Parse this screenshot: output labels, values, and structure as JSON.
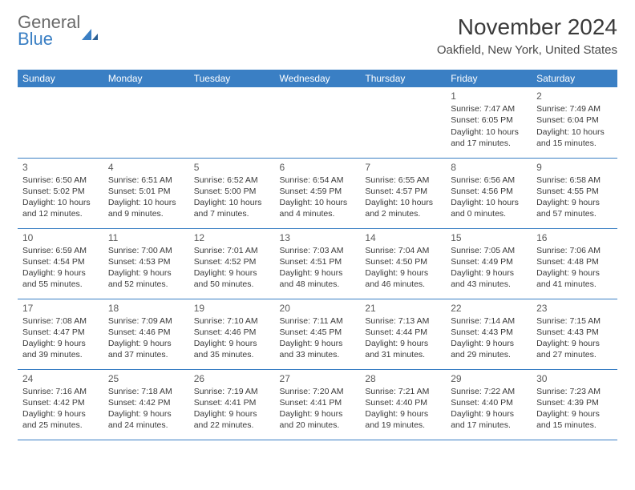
{
  "logo": {
    "line1": "General",
    "line2": "Blue"
  },
  "title": "November 2024",
  "location": "Oakfield, New York, United States",
  "colors": {
    "header_bg": "#3a7fc4",
    "header_text": "#ffffff",
    "accent": "#3a7fc4",
    "body_text": "#3a3a3a",
    "logo_gray": "#6a6a6a"
  },
  "dayHeaders": [
    "Sunday",
    "Monday",
    "Tuesday",
    "Wednesday",
    "Thursday",
    "Friday",
    "Saturday"
  ],
  "weeks": [
    [
      {
        "empty": true
      },
      {
        "empty": true
      },
      {
        "empty": true
      },
      {
        "empty": true
      },
      {
        "empty": true
      },
      {
        "n": "1",
        "sunrise": "Sunrise: 7:47 AM",
        "sunset": "Sunset: 6:05 PM",
        "d1": "Daylight: 10 hours",
        "d2": "and 17 minutes."
      },
      {
        "n": "2",
        "sunrise": "Sunrise: 7:49 AM",
        "sunset": "Sunset: 6:04 PM",
        "d1": "Daylight: 10 hours",
        "d2": "and 15 minutes."
      }
    ],
    [
      {
        "n": "3",
        "sunrise": "Sunrise: 6:50 AM",
        "sunset": "Sunset: 5:02 PM",
        "d1": "Daylight: 10 hours",
        "d2": "and 12 minutes."
      },
      {
        "n": "4",
        "sunrise": "Sunrise: 6:51 AM",
        "sunset": "Sunset: 5:01 PM",
        "d1": "Daylight: 10 hours",
        "d2": "and 9 minutes."
      },
      {
        "n": "5",
        "sunrise": "Sunrise: 6:52 AM",
        "sunset": "Sunset: 5:00 PM",
        "d1": "Daylight: 10 hours",
        "d2": "and 7 minutes."
      },
      {
        "n": "6",
        "sunrise": "Sunrise: 6:54 AM",
        "sunset": "Sunset: 4:59 PM",
        "d1": "Daylight: 10 hours",
        "d2": "and 4 minutes."
      },
      {
        "n": "7",
        "sunrise": "Sunrise: 6:55 AM",
        "sunset": "Sunset: 4:57 PM",
        "d1": "Daylight: 10 hours",
        "d2": "and 2 minutes."
      },
      {
        "n": "8",
        "sunrise": "Sunrise: 6:56 AM",
        "sunset": "Sunset: 4:56 PM",
        "d1": "Daylight: 10 hours",
        "d2": "and 0 minutes."
      },
      {
        "n": "9",
        "sunrise": "Sunrise: 6:58 AM",
        "sunset": "Sunset: 4:55 PM",
        "d1": "Daylight: 9 hours",
        "d2": "and 57 minutes."
      }
    ],
    [
      {
        "n": "10",
        "sunrise": "Sunrise: 6:59 AM",
        "sunset": "Sunset: 4:54 PM",
        "d1": "Daylight: 9 hours",
        "d2": "and 55 minutes."
      },
      {
        "n": "11",
        "sunrise": "Sunrise: 7:00 AM",
        "sunset": "Sunset: 4:53 PM",
        "d1": "Daylight: 9 hours",
        "d2": "and 52 minutes."
      },
      {
        "n": "12",
        "sunrise": "Sunrise: 7:01 AM",
        "sunset": "Sunset: 4:52 PM",
        "d1": "Daylight: 9 hours",
        "d2": "and 50 minutes."
      },
      {
        "n": "13",
        "sunrise": "Sunrise: 7:03 AM",
        "sunset": "Sunset: 4:51 PM",
        "d1": "Daylight: 9 hours",
        "d2": "and 48 minutes."
      },
      {
        "n": "14",
        "sunrise": "Sunrise: 7:04 AM",
        "sunset": "Sunset: 4:50 PM",
        "d1": "Daylight: 9 hours",
        "d2": "and 46 minutes."
      },
      {
        "n": "15",
        "sunrise": "Sunrise: 7:05 AM",
        "sunset": "Sunset: 4:49 PM",
        "d1": "Daylight: 9 hours",
        "d2": "and 43 minutes."
      },
      {
        "n": "16",
        "sunrise": "Sunrise: 7:06 AM",
        "sunset": "Sunset: 4:48 PM",
        "d1": "Daylight: 9 hours",
        "d2": "and 41 minutes."
      }
    ],
    [
      {
        "n": "17",
        "sunrise": "Sunrise: 7:08 AM",
        "sunset": "Sunset: 4:47 PM",
        "d1": "Daylight: 9 hours",
        "d2": "and 39 minutes."
      },
      {
        "n": "18",
        "sunrise": "Sunrise: 7:09 AM",
        "sunset": "Sunset: 4:46 PM",
        "d1": "Daylight: 9 hours",
        "d2": "and 37 minutes."
      },
      {
        "n": "19",
        "sunrise": "Sunrise: 7:10 AM",
        "sunset": "Sunset: 4:46 PM",
        "d1": "Daylight: 9 hours",
        "d2": "and 35 minutes."
      },
      {
        "n": "20",
        "sunrise": "Sunrise: 7:11 AM",
        "sunset": "Sunset: 4:45 PM",
        "d1": "Daylight: 9 hours",
        "d2": "and 33 minutes."
      },
      {
        "n": "21",
        "sunrise": "Sunrise: 7:13 AM",
        "sunset": "Sunset: 4:44 PM",
        "d1": "Daylight: 9 hours",
        "d2": "and 31 minutes."
      },
      {
        "n": "22",
        "sunrise": "Sunrise: 7:14 AM",
        "sunset": "Sunset: 4:43 PM",
        "d1": "Daylight: 9 hours",
        "d2": "and 29 minutes."
      },
      {
        "n": "23",
        "sunrise": "Sunrise: 7:15 AM",
        "sunset": "Sunset: 4:43 PM",
        "d1": "Daylight: 9 hours",
        "d2": "and 27 minutes."
      }
    ],
    [
      {
        "n": "24",
        "sunrise": "Sunrise: 7:16 AM",
        "sunset": "Sunset: 4:42 PM",
        "d1": "Daylight: 9 hours",
        "d2": "and 25 minutes."
      },
      {
        "n": "25",
        "sunrise": "Sunrise: 7:18 AM",
        "sunset": "Sunset: 4:42 PM",
        "d1": "Daylight: 9 hours",
        "d2": "and 24 minutes."
      },
      {
        "n": "26",
        "sunrise": "Sunrise: 7:19 AM",
        "sunset": "Sunset: 4:41 PM",
        "d1": "Daylight: 9 hours",
        "d2": "and 22 minutes."
      },
      {
        "n": "27",
        "sunrise": "Sunrise: 7:20 AM",
        "sunset": "Sunset: 4:41 PM",
        "d1": "Daylight: 9 hours",
        "d2": "and 20 minutes."
      },
      {
        "n": "28",
        "sunrise": "Sunrise: 7:21 AM",
        "sunset": "Sunset: 4:40 PM",
        "d1": "Daylight: 9 hours",
        "d2": "and 19 minutes."
      },
      {
        "n": "29",
        "sunrise": "Sunrise: 7:22 AM",
        "sunset": "Sunset: 4:40 PM",
        "d1": "Daylight: 9 hours",
        "d2": "and 17 minutes."
      },
      {
        "n": "30",
        "sunrise": "Sunrise: 7:23 AM",
        "sunset": "Sunset: 4:39 PM",
        "d1": "Daylight: 9 hours",
        "d2": "and 15 minutes."
      }
    ]
  ]
}
